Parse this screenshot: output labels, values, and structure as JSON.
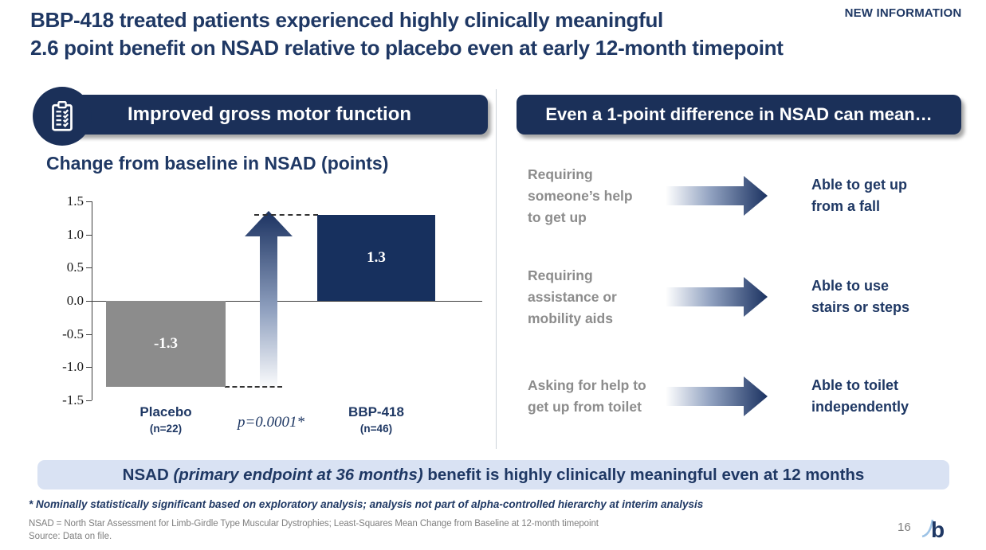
{
  "badge": {
    "label": "NEW INFORMATION",
    "line_color": "#bb1120"
  },
  "title": {
    "line1": "BBP-418 treated patients experienced highly clinically meaningful",
    "line2": "2.6 point benefit on NSAD relative to placebo even at early 12-month timepoint"
  },
  "left_panel": {
    "header": "Improved gross motor function",
    "icon": "clipboard-checklist-icon"
  },
  "right_panel": {
    "header": "Even a 1-point difference in NSAD can mean…",
    "rows": [
      {
        "from": "Requiring\nsomeone’s help\nto get up",
        "to": "Able to get up\nfrom a fall"
      },
      {
        "from": "Requiring\nassistance or\nmobility aids",
        "to": "Able to use\nstairs or steps"
      },
      {
        "from": "Asking for help to\nget up from toilet",
        "to": "Able to toilet\nindependently"
      }
    ]
  },
  "chart_data": {
    "type": "bar",
    "title": "Change from baseline in NSAD (points)",
    "categories": [
      "Placebo",
      "BBP-418"
    ],
    "group_sizes": [
      "(n=22)",
      "(n=46)"
    ],
    "values": [
      -1.3,
      1.3
    ],
    "bar_colors": [
      "#8c8c8c",
      "#17305e"
    ],
    "ylim": [
      -1.5,
      1.5
    ],
    "yticks": [
      1.5,
      1.0,
      0.5,
      0.0,
      -0.5,
      -1.0,
      -1.5
    ],
    "annotation": "p=0.0001*",
    "grid": false,
    "legend": "none"
  },
  "banner": {
    "prefix": "NSAD ",
    "italic": "(primary endpoint at 36 months)",
    "suffix": " benefit is highly clinically meaningful even at 12 months"
  },
  "footnotes": {
    "asterisk": "* Nominally statistically significant based on exploratory analysis; analysis not part of alpha-controlled hierarchy at interim analysis",
    "definition": "NSAD = North Star Assessment for Limb-Girdle Type Muscular Dystrophies; Least-Squares Mean Change from Baseline at 12-month timepoint",
    "source": "Source: Data on file."
  },
  "footer": {
    "page_number": "16",
    "logo_letter": "b"
  },
  "colors": {
    "navy_text": "#1f3864",
    "panel_navy": "#1b3059",
    "bar_navy": "#17305e",
    "bar_gray": "#8c8c8c",
    "badge_red": "#bb1120",
    "banner_bg": "#d9e2f3",
    "gray_text": "#8c8c8c",
    "footnote_gray": "#7f7f7f",
    "logo_light_blue": "#9dc3e6"
  }
}
